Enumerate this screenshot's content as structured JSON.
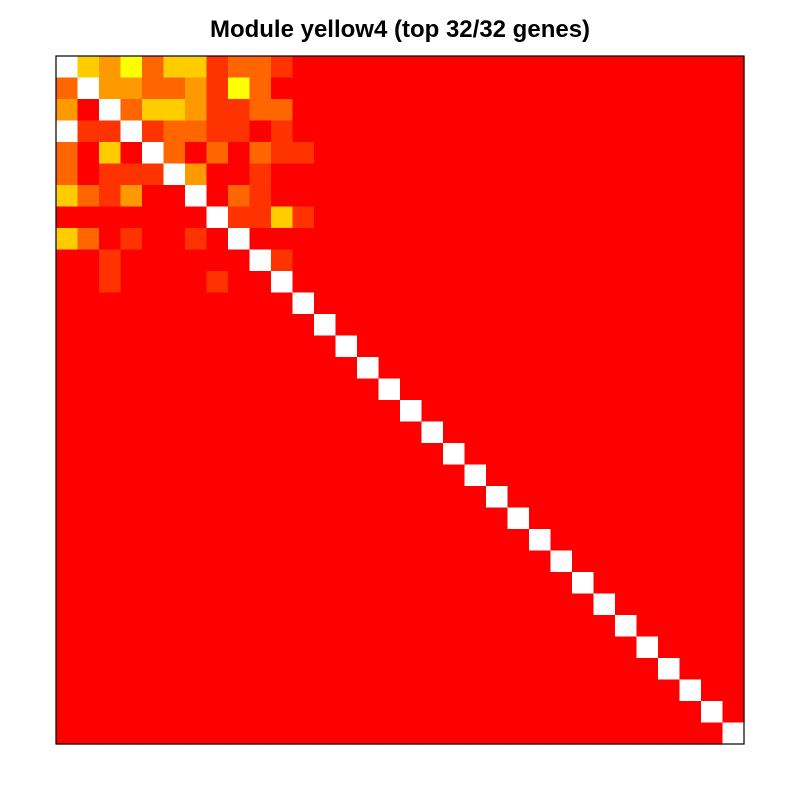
{
  "chart_data": {
    "type": "heatmap",
    "title": "Module yellow4 (top 32/32 genes)",
    "n": 32,
    "colors": {
      "diagonal": "#FFFFFF",
      "frame": "#000000",
      "palette": [
        "#FF0000",
        "#FF3300",
        "#FF6600",
        "#FF9900",
        "#FFCC00",
        "#FFFF00"
      ]
    },
    "rows": [
      [
        null,
        4,
        3,
        5,
        2,
        4,
        4,
        1,
        2,
        2,
        1,
        0,
        0,
        0,
        0,
        0,
        0,
        0,
        0,
        0,
        0,
        0,
        0,
        0,
        0,
        0,
        0,
        0,
        0,
        0,
        0,
        0
      ],
      [
        2,
        null,
        3,
        3,
        2,
        2,
        3,
        1,
        5,
        2,
        0,
        0,
        0,
        0,
        0,
        0,
        0,
        0,
        0,
        0,
        0,
        0,
        0,
        0,
        0,
        0,
        0,
        0,
        0,
        0,
        0,
        0
      ],
      [
        3,
        0,
        null,
        2,
        4,
        4,
        3,
        1,
        1,
        2,
        2,
        0,
        0,
        0,
        0,
        0,
        0,
        0,
        0,
        0,
        0,
        0,
        0,
        0,
        0,
        0,
        0,
        0,
        0,
        0,
        0,
        0
      ],
      [
        null,
        1,
        1,
        null,
        1,
        2,
        2,
        1,
        1,
        0,
        1,
        0,
        0,
        0,
        0,
        0,
        0,
        0,
        0,
        0,
        0,
        0,
        0,
        0,
        0,
        0,
        0,
        0,
        0,
        0,
        0,
        0
      ],
      [
        2,
        0,
        4,
        0,
        null,
        2,
        0,
        2,
        0,
        2,
        1,
        1,
        0,
        0,
        0,
        0,
        0,
        0,
        0,
        0,
        0,
        0,
        0,
        0,
        0,
        0,
        0,
        0,
        0,
        0,
        0,
        0
      ],
      [
        2,
        0,
        1,
        1,
        1,
        null,
        3,
        0,
        0,
        1,
        0,
        0,
        0,
        0,
        0,
        0,
        0,
        0,
        0,
        0,
        0,
        0,
        0,
        0,
        0,
        0,
        0,
        0,
        0,
        0,
        0,
        0
      ],
      [
        4,
        2,
        1,
        3,
        0,
        0,
        null,
        0,
        2,
        1,
        0,
        0,
        0,
        0,
        0,
        0,
        0,
        0,
        0,
        0,
        0,
        0,
        0,
        0,
        0,
        0,
        0,
        0,
        0,
        0,
        0,
        0
      ],
      [
        0,
        0,
        0,
        0,
        0,
        0,
        0,
        null,
        1,
        1,
        4,
        1,
        0,
        0,
        0,
        0,
        0,
        0,
        0,
        0,
        0,
        0,
        0,
        0,
        0,
        0,
        0,
        0,
        0,
        0,
        0,
        0
      ],
      [
        4,
        2,
        0,
        1,
        0,
        0,
        1,
        0,
        null,
        0,
        0,
        0,
        0,
        0,
        0,
        0,
        0,
        0,
        0,
        0,
        0,
        0,
        0,
        0,
        0,
        0,
        0,
        0,
        0,
        0,
        0,
        0
      ],
      [
        0,
        0,
        1,
        0,
        0,
        0,
        0,
        0,
        0,
        null,
        1,
        0,
        0,
        0,
        0,
        0,
        0,
        0,
        0,
        0,
        0,
        0,
        0,
        0,
        0,
        0,
        0,
        0,
        0,
        0,
        0,
        0
      ],
      [
        0,
        0,
        1,
        0,
        0,
        0,
        0,
        1,
        0,
        0,
        null,
        0,
        0,
        0,
        0,
        0,
        0,
        0,
        0,
        0,
        0,
        0,
        0,
        0,
        0,
        0,
        0,
        0,
        0,
        0,
        0,
        0
      ],
      [
        0,
        0,
        0,
        0,
        0,
        0,
        0,
        0,
        0,
        0,
        0,
        null,
        0,
        0,
        0,
        0,
        0,
        0,
        0,
        0,
        0,
        0,
        0,
        0,
        0,
        0,
        0,
        0,
        0,
        0,
        0,
        0
      ],
      [
        0,
        0,
        0,
        0,
        0,
        0,
        0,
        0,
        0,
        0,
        0,
        0,
        null,
        0,
        0,
        0,
        0,
        0,
        0,
        0,
        0,
        0,
        0,
        0,
        0,
        0,
        0,
        0,
        0,
        0,
        0,
        0
      ],
      [
        0,
        0,
        0,
        0,
        0,
        0,
        0,
        0,
        0,
        0,
        0,
        0,
        0,
        null,
        0,
        0,
        0,
        0,
        0,
        0,
        0,
        0,
        0,
        0,
        0,
        0,
        0,
        0,
        0,
        0,
        0,
        0
      ],
      [
        0,
        0,
        0,
        0,
        0,
        0,
        0,
        0,
        0,
        0,
        0,
        0,
        0,
        0,
        null,
        0,
        0,
        0,
        0,
        0,
        0,
        0,
        0,
        0,
        0,
        0,
        0,
        0,
        0,
        0,
        0,
        0
      ],
      [
        0,
        0,
        0,
        0,
        0,
        0,
        0,
        0,
        0,
        0,
        0,
        0,
        0,
        0,
        0,
        null,
        0,
        0,
        0,
        0,
        0,
        0,
        0,
        0,
        0,
        0,
        0,
        0,
        0,
        0,
        0,
        0
      ],
      [
        0,
        0,
        0,
        0,
        0,
        0,
        0,
        0,
        0,
        0,
        0,
        0,
        0,
        0,
        0,
        0,
        null,
        0,
        0,
        0,
        0,
        0,
        0,
        0,
        0,
        0,
        0,
        0,
        0,
        0,
        0,
        0
      ],
      [
        0,
        0,
        0,
        0,
        0,
        0,
        0,
        0,
        0,
        0,
        0,
        0,
        0,
        0,
        0,
        0,
        0,
        null,
        0,
        0,
        0,
        0,
        0,
        0,
        0,
        0,
        0,
        0,
        0,
        0,
        0,
        0
      ],
      [
        0,
        0,
        0,
        0,
        0,
        0,
        0,
        0,
        0,
        0,
        0,
        0,
        0,
        0,
        0,
        0,
        0,
        0,
        null,
        0,
        0,
        0,
        0,
        0,
        0,
        0,
        0,
        0,
        0,
        0,
        0,
        0
      ],
      [
        0,
        0,
        0,
        0,
        0,
        0,
        0,
        0,
        0,
        0,
        0,
        0,
        0,
        0,
        0,
        0,
        0,
        0,
        0,
        null,
        0,
        0,
        0,
        0,
        0,
        0,
        0,
        0,
        0,
        0,
        0,
        0
      ],
      [
        0,
        0,
        0,
        0,
        0,
        0,
        0,
        0,
        0,
        0,
        0,
        0,
        0,
        0,
        0,
        0,
        0,
        0,
        0,
        0,
        null,
        0,
        0,
        0,
        0,
        0,
        0,
        0,
        0,
        0,
        0,
        0
      ],
      [
        0,
        0,
        0,
        0,
        0,
        0,
        0,
        0,
        0,
        0,
        0,
        0,
        0,
        0,
        0,
        0,
        0,
        0,
        0,
        0,
        0,
        null,
        0,
        0,
        0,
        0,
        0,
        0,
        0,
        0,
        0,
        0
      ],
      [
        0,
        0,
        0,
        0,
        0,
        0,
        0,
        0,
        0,
        0,
        0,
        0,
        0,
        0,
        0,
        0,
        0,
        0,
        0,
        0,
        0,
        0,
        null,
        0,
        0,
        0,
        0,
        0,
        0,
        0,
        0,
        0
      ],
      [
        0,
        0,
        0,
        0,
        0,
        0,
        0,
        0,
        0,
        0,
        0,
        0,
        0,
        0,
        0,
        0,
        0,
        0,
        0,
        0,
        0,
        0,
        0,
        null,
        0,
        0,
        0,
        0,
        0,
        0,
        0,
        0
      ],
      [
        0,
        0,
        0,
        0,
        0,
        0,
        0,
        0,
        0,
        0,
        0,
        0,
        0,
        0,
        0,
        0,
        0,
        0,
        0,
        0,
        0,
        0,
        0,
        0,
        null,
        0,
        0,
        0,
        0,
        0,
        0,
        0
      ],
      [
        0,
        0,
        0,
        0,
        0,
        0,
        0,
        0,
        0,
        0,
        0,
        0,
        0,
        0,
        0,
        0,
        0,
        0,
        0,
        0,
        0,
        0,
        0,
        0,
        0,
        null,
        0,
        0,
        0,
        0,
        0,
        0
      ],
      [
        0,
        0,
        0,
        0,
        0,
        0,
        0,
        0,
        0,
        0,
        0,
        0,
        0,
        0,
        0,
        0,
        0,
        0,
        0,
        0,
        0,
        0,
        0,
        0,
        0,
        0,
        null,
        0,
        0,
        0,
        0,
        0
      ],
      [
        0,
        0,
        0,
        0,
        0,
        0,
        0,
        0,
        0,
        0,
        0,
        0,
        0,
        0,
        0,
        0,
        0,
        0,
        0,
        0,
        0,
        0,
        0,
        0,
        0,
        0,
        0,
        null,
        0,
        0,
        0,
        0
      ],
      [
        0,
        0,
        0,
        0,
        0,
        0,
        0,
        0,
        0,
        0,
        0,
        0,
        0,
        0,
        0,
        0,
        0,
        0,
        0,
        0,
        0,
        0,
        0,
        0,
        0,
        0,
        0,
        0,
        null,
        0,
        0,
        0
      ],
      [
        0,
        0,
        0,
        0,
        0,
        0,
        0,
        0,
        0,
        0,
        0,
        0,
        0,
        0,
        0,
        0,
        0,
        0,
        0,
        0,
        0,
        0,
        0,
        0,
        0,
        0,
        0,
        0,
        0,
        null,
        0,
        0
      ],
      [
        0,
        0,
        0,
        0,
        0,
        0,
        0,
        0,
        0,
        0,
        0,
        0,
        0,
        0,
        0,
        0,
        0,
        0,
        0,
        0,
        0,
        0,
        0,
        0,
        0,
        0,
        0,
        0,
        0,
        0,
        null,
        0
      ],
      [
        0,
        0,
        0,
        0,
        0,
        0,
        0,
        0,
        0,
        0,
        0,
        0,
        0,
        0,
        0,
        0,
        0,
        0,
        0,
        0,
        0,
        0,
        0,
        0,
        0,
        0,
        0,
        0,
        0,
        0,
        0,
        null
      ]
    ]
  }
}
